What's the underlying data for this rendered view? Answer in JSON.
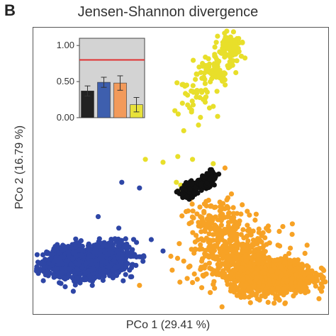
{
  "figure": {
    "panel_letter": "B",
    "title": "Jensen-Shannon divergence",
    "xlabel": "PCo 1 (29.41 %)",
    "ylabel": "PCo 2 (16.79 %)"
  },
  "chart_data": [
    {
      "type": "scatter",
      "title": "Jensen-Shannon divergence",
      "xlabel": "PCo 1 (29.41 %)",
      "ylabel": "PCo 2 (16.79 %)",
      "grid": false,
      "xlim": [
        -1,
        1
      ],
      "ylim": [
        -1,
        1
      ],
      "series": [
        {
          "color": "#2e46a6",
          "clusters": [
            {
              "cx": -0.66,
              "cy": -0.64,
              "sx": 0.12,
              "sy": 0.05,
              "n": 1500
            },
            {
              "cx": -0.48,
              "cy": -0.58,
              "sx": 0.08,
              "sy": 0.05,
              "n": 200
            }
          ],
          "extra_points": [
            [
              -0.4,
              -0.08
            ],
            [
              -0.28,
              -0.12
            ],
            [
              -0.3,
              -0.5
            ],
            [
              -0.42,
              -0.4
            ],
            [
              -0.56,
              -0.32
            ],
            [
              -0.2,
              -0.48
            ],
            [
              -0.6,
              -0.8
            ],
            [
              -0.34,
              -0.74
            ],
            [
              -0.12,
              -0.56
            ],
            [
              -0.25,
              -0.6
            ]
          ]
        },
        {
          "color": "#f7a225",
          "clusters": [
            {
              "cx": 0.62,
              "cy": -0.74,
              "sx": 0.14,
              "sy": 0.06,
              "n": 1100
            },
            {
              "cx": 0.38,
              "cy": -0.58,
              "sx": 0.16,
              "sy": 0.1,
              "n": 380
            },
            {
              "cx": 0.24,
              "cy": -0.35,
              "sx": 0.1,
              "sy": 0.08,
              "n": 120
            }
          ],
          "extra_points": [
            [
              0.05,
              -0.28
            ],
            [
              0.12,
              -0.36
            ],
            [
              0.1,
              -0.55
            ],
            [
              0.02,
              -0.63
            ],
            [
              0.2,
              -0.85
            ],
            [
              0.08,
              -0.78
            ],
            [
              0.28,
              -0.95
            ],
            [
              0.12,
              -0.08
            ],
            [
              0.3,
              0.02
            ],
            [
              -0.28,
              -0.8
            ]
          ]
        },
        {
          "color": "#e8df2a",
          "clusters": [
            {
              "cx": 0.34,
              "cy": 0.86,
              "sx": 0.04,
              "sy": 0.05,
              "n": 110
            },
            {
              "cx": 0.22,
              "cy": 0.7,
              "sx": 0.06,
              "sy": 0.06,
              "n": 60
            },
            {
              "cx": 0.08,
              "cy": 0.52,
              "sx": 0.05,
              "sy": 0.07,
              "n": 35
            }
          ],
          "extra_points": [
            [
              -0.12,
              0.06
            ],
            [
              -0.02,
              0.1
            ],
            [
              0.08,
              0.08
            ],
            [
              0.22,
              0.05
            ],
            [
              -0.03,
              -0.08
            ],
            [
              -0.02,
              -0.14
            ],
            [
              0.0,
              -0.1
            ],
            [
              0.02,
              0.28
            ],
            [
              0.12,
              0.32
            ],
            [
              0.06,
              0.44
            ],
            [
              -0.04,
              0.42
            ],
            [
              0.18,
              0.55
            ],
            [
              0.22,
              0.45
            ],
            [
              0.25,
              0.38
            ],
            [
              -0.24,
              0.08
            ]
          ]
        },
        {
          "color": "#111111",
          "clusters": [
            {
              "cx": 0.04,
              "cy": -0.15,
              "sx": 0.03,
              "sy": 0.02,
              "n": 50
            },
            {
              "cx": 0.1,
              "cy": -0.11,
              "sx": 0.03,
              "sy": 0.02,
              "n": 60
            },
            {
              "cx": 0.17,
              "cy": -0.07,
              "sx": 0.025,
              "sy": 0.02,
              "n": 55
            },
            {
              "cx": 0.21,
              "cy": -0.03,
              "sx": 0.02,
              "sy": 0.02,
              "n": 30
            }
          ],
          "extra_points": []
        }
      ]
    },
    {
      "type": "bar",
      "ylim": [
        0,
        1.1
      ],
      "yticks": [
        "0.00",
        "0.50",
        "1.00"
      ],
      "ytick_values": [
        0,
        0.5,
        1.0
      ],
      "background": "#d3d3d3",
      "reference_line": {
        "value": 0.8,
        "color": "#e03030"
      },
      "bars": [
        {
          "value": 0.37,
          "error": 0.07,
          "color": "#222222"
        },
        {
          "value": 0.49,
          "error": 0.07,
          "color": "#3e5fae"
        },
        {
          "value": 0.48,
          "error": 0.1,
          "color": "#f29a5a"
        },
        {
          "value": 0.18,
          "error": 0.1,
          "color": "#e8e23a"
        }
      ]
    }
  ]
}
